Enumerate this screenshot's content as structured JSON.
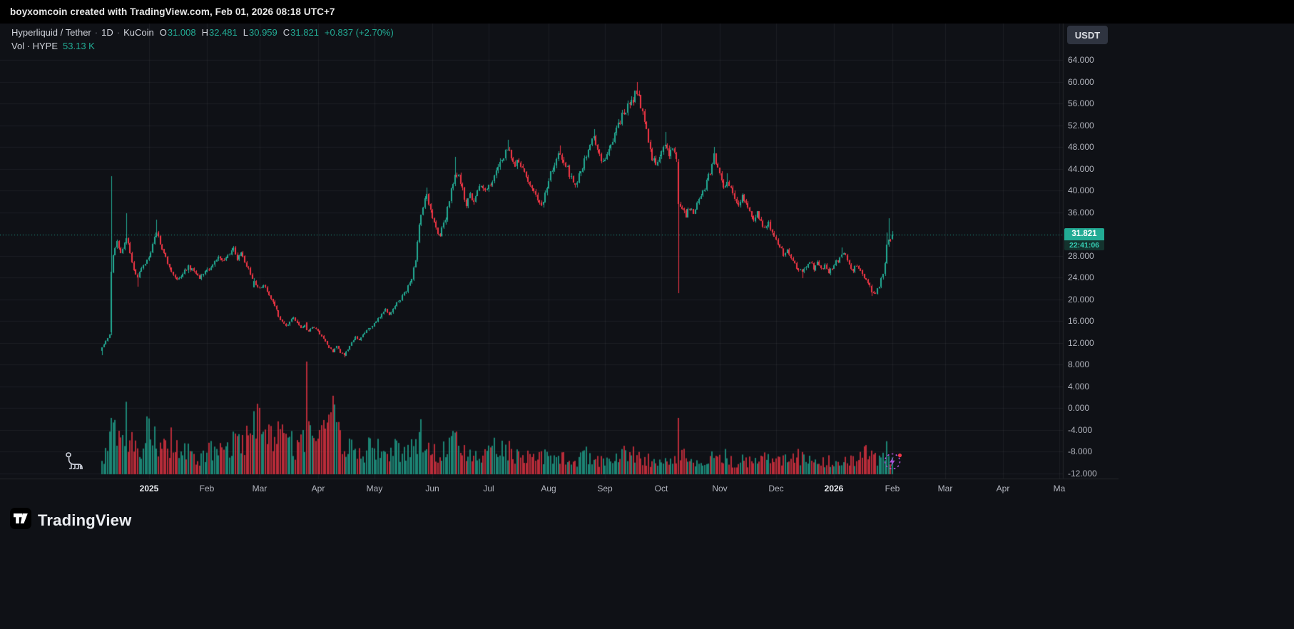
{
  "topbar": {
    "attribution": "boyxomcoin created with TradingView.com, Feb 01, 2026 08:18 UTC+7"
  },
  "legend": {
    "symbol": "Hyperliquid / Tether",
    "separator": "·",
    "interval": "1D",
    "exchange": "KuCoin",
    "ohlc": [
      {
        "label": "O",
        "value": "31.008"
      },
      {
        "label": "H",
        "value": "32.481"
      },
      {
        "label": "L",
        "value": "30.959"
      },
      {
        "label": "C",
        "value": "31.821"
      }
    ],
    "change": "+0.837 (+2.70%)",
    "volume_label": "Vol · HYPE",
    "volume_value": "53.13 K"
  },
  "price_axis": {
    "currency_button": "USDT",
    "ticks": [
      "64.000",
      "60.000",
      "56.000",
      "52.000",
      "48.000",
      "44.000",
      "40.000",
      "36.000",
      "28.000",
      "24.000",
      "20.000",
      "16.000",
      "12.000",
      "8.000",
      "4.000",
      "0.000",
      "-4.000",
      "-8.000",
      "-12.000"
    ],
    "last_price_label": "31.821",
    "countdown": "22:41:06"
  },
  "footer": {
    "brand": "TradingView"
  },
  "colors": {
    "up": "#22ab94",
    "down": "#f23645",
    "grid": "rgba(240,243,250,0.055)",
    "axis_line": "rgba(255,255,255,0.09)",
    "axis_text": "#b2b5be"
  },
  "chart_data": {
    "type": "candlestick_with_volume",
    "title": "Hyperliquid / Tether · 1D · KuCoin",
    "symbol": "HYPE/USDT",
    "timeframe": "1D",
    "current_price": 31.821,
    "last_candle": {
      "open": 31.008,
      "high": 32.481,
      "low": 30.959,
      "close": 31.821,
      "change": 0.837,
      "change_pct": 2.7,
      "volume_label": "53.13 K"
    },
    "price_axis_range": [
      -12,
      64
    ],
    "price_grid_step": 4,
    "days": 421,
    "time_axis_labels": [
      {
        "text": "2025",
        "day": 25,
        "year": true
      },
      {
        "text": "Feb",
        "day": 56
      },
      {
        "text": "Mar",
        "day": 84
      },
      {
        "text": "Apr",
        "day": 115
      },
      {
        "text": "May",
        "day": 145
      },
      {
        "text": "Jun",
        "day": 176
      },
      {
        "text": "Jul",
        "day": 206
      },
      {
        "text": "Aug",
        "day": 238
      },
      {
        "text": "Sep",
        "day": 268
      },
      {
        "text": "Oct",
        "day": 298
      },
      {
        "text": "Nov",
        "day": 329
      },
      {
        "text": "Dec",
        "day": 359
      },
      {
        "text": "2026",
        "day": 390,
        "year": true
      },
      {
        "text": "Feb",
        "day": 421
      },
      {
        "text": "Mar",
        "day": 449
      },
      {
        "text": "Apr",
        "day": 480
      },
      {
        "text": "Ma",
        "day": 510
      }
    ],
    "price_path_anchors": [
      [
        0,
        11.0
      ],
      [
        2,
        12.3
      ],
      [
        4,
        13.4
      ],
      [
        5,
        25.0
      ],
      [
        6,
        28.5
      ],
      [
        8,
        30.5
      ],
      [
        10,
        28.5
      ],
      [
        12,
        30.0
      ],
      [
        13,
        31.5
      ],
      [
        15,
        28.5
      ],
      [
        17,
        25.5
      ],
      [
        19,
        24.0
      ],
      [
        21,
        25.5
      ],
      [
        23,
        26.5
      ],
      [
        25,
        27.5
      ],
      [
        27,
        30.0
      ],
      [
        29,
        32.5
      ],
      [
        31,
        30.5
      ],
      [
        34,
        27.5
      ],
      [
        37,
        25.0
      ],
      [
        40,
        23.4
      ],
      [
        43,
        24.6
      ],
      [
        46,
        26.0
      ],
      [
        49,
        25.0
      ],
      [
        52,
        24.0
      ],
      [
        56,
        25.2
      ],
      [
        59,
        26.5
      ],
      [
        62,
        27.6
      ],
      [
        65,
        26.8
      ],
      [
        68,
        28.6
      ],
      [
        70,
        29.3
      ],
      [
        72,
        27.6
      ],
      [
        74,
        28.6
      ],
      [
        76,
        27.0
      ],
      [
        78,
        25.4
      ],
      [
        80,
        23.8
      ],
      [
        82,
        22.6
      ],
      [
        84,
        21.8
      ],
      [
        86,
        22.8
      ],
      [
        88,
        21.5
      ],
      [
        90,
        20.0
      ],
      [
        92,
        18.5
      ],
      [
        94,
        17.0
      ],
      [
        96,
        15.8
      ],
      [
        98,
        15.0
      ],
      [
        100,
        16.0
      ],
      [
        102,
        16.8
      ],
      [
        104,
        15.5
      ],
      [
        106,
        14.5
      ],
      [
        108,
        15.2
      ],
      [
        110,
        14.0
      ],
      [
        112,
        14.8
      ],
      [
        115,
        14.2
      ],
      [
        117,
        13.2
      ],
      [
        119,
        12.2
      ],
      [
        121,
        11.2
      ],
      [
        123,
        10.4
      ],
      [
        125,
        11.4
      ],
      [
        127,
        10.2
      ],
      [
        129,
        9.8
      ],
      [
        131,
        10.8
      ],
      [
        133,
        12.0
      ],
      [
        135,
        13.2
      ],
      [
        137,
        12.4
      ],
      [
        139,
        13.4
      ],
      [
        141,
        14.2
      ],
      [
        143,
        14.8
      ],
      [
        145,
        15.5
      ],
      [
        147,
        16.3
      ],
      [
        149,
        17.2
      ],
      [
        151,
        18.0
      ],
      [
        153,
        17.2
      ],
      [
        155,
        18.2
      ],
      [
        157,
        19.2
      ],
      [
        159,
        20.0
      ],
      [
        161,
        21.0
      ],
      [
        163,
        22.3
      ],
      [
        165,
        24.0
      ],
      [
        167,
        27.5
      ],
      [
        169,
        33.5
      ],
      [
        171,
        37.0
      ],
      [
        173,
        39.0
      ],
      [
        175,
        36.5
      ],
      [
        176,
        35.0
      ],
      [
        178,
        33.0
      ],
      [
        180,
        31.8
      ],
      [
        182,
        33.8
      ],
      [
        184,
        36.5
      ],
      [
        186,
        40.0
      ],
      [
        188,
        43.5
      ],
      [
        190,
        42.5
      ],
      [
        192,
        40.0
      ],
      [
        194,
        37.5
      ],
      [
        196,
        39.0
      ],
      [
        198,
        38.0
      ],
      [
        200,
        40.0
      ],
      [
        202,
        41.0
      ],
      [
        204,
        40.0
      ],
      [
        206,
        40.5
      ],
      [
        208,
        42.0
      ],
      [
        210,
        43.5
      ],
      [
        212,
        45.0
      ],
      [
        214,
        46.5
      ],
      [
        216,
        47.8
      ],
      [
        218,
        46.0
      ],
      [
        220,
        44.5
      ],
      [
        222,
        45.5
      ],
      [
        224,
        44.0
      ],
      [
        226,
        42.5
      ],
      [
        228,
        41.0
      ],
      [
        230,
        39.5
      ],
      [
        232,
        38.5
      ],
      [
        234,
        37.0
      ],
      [
        236,
        39.5
      ],
      [
        238,
        42.0
      ],
      [
        240,
        44.0
      ],
      [
        242,
        45.8
      ],
      [
        244,
        47.0
      ],
      [
        246,
        45.5
      ],
      [
        248,
        44.0
      ],
      [
        250,
        42.0
      ],
      [
        252,
        40.8
      ],
      [
        254,
        42.5
      ],
      [
        256,
        44.5
      ],
      [
        258,
        46.5
      ],
      [
        260,
        48.5
      ],
      [
        262,
        50.2
      ],
      [
        264,
        47.5
      ],
      [
        266,
        45.5
      ],
      [
        268,
        45.8
      ],
      [
        271,
        48.0
      ],
      [
        274,
        51.0
      ],
      [
        277,
        53.5
      ],
      [
        280,
        55.5
      ],
      [
        283,
        57.0
      ],
      [
        285,
        58.3
      ],
      [
        287,
        55.5
      ],
      [
        289,
        52.5
      ],
      [
        291,
        49.0
      ],
      [
        293,
        46.0
      ],
      [
        295,
        44.8
      ],
      [
        297,
        46.5
      ],
      [
        298,
        47.5
      ],
      [
        300,
        48.7
      ],
      [
        302,
        46.8
      ],
      [
        304,
        48.0
      ],
      [
        306,
        46.0
      ],
      [
        307,
        37.5
      ],
      [
        309,
        37.0
      ],
      [
        311,
        35.5
      ],
      [
        313,
        37.0
      ],
      [
        315,
        36.0
      ],
      [
        317,
        37.5
      ],
      [
        319,
        39.0
      ],
      [
        321,
        40.5
      ],
      [
        323,
        42.5
      ],
      [
        325,
        44.5
      ],
      [
        326,
        46.3
      ],
      [
        328,
        44.5
      ],
      [
        329,
        43.0
      ],
      [
        331,
        40.0
      ],
      [
        333,
        41.8
      ],
      [
        335,
        40.5
      ],
      [
        337,
        38.8
      ],
      [
        339,
        37.5
      ],
      [
        341,
        39.0
      ],
      [
        343,
        37.8
      ],
      [
        345,
        36.2
      ],
      [
        347,
        34.8
      ],
      [
        349,
        35.8
      ],
      [
        351,
        34.2
      ],
      [
        353,
        32.8
      ],
      [
        355,
        33.8
      ],
      [
        357,
        32.2
      ],
      [
        359,
        31.2
      ],
      [
        361,
        29.8
      ],
      [
        363,
        28.3
      ],
      [
        365,
        29.2
      ],
      [
        367,
        27.8
      ],
      [
        369,
        26.4
      ],
      [
        371,
        25.4
      ],
      [
        373,
        24.7
      ],
      [
        375,
        25.9
      ],
      [
        377,
        26.8
      ],
      [
        379,
        25.7
      ],
      [
        381,
        26.6
      ],
      [
        383,
        25.5
      ],
      [
        385,
        26.3
      ],
      [
        387,
        25.1
      ],
      [
        389,
        25.9
      ],
      [
        390,
        26.3
      ],
      [
        392,
        27.2
      ],
      [
        394,
        28.3
      ],
      [
        396,
        27.8
      ],
      [
        398,
        26.4
      ],
      [
        400,
        25.4
      ],
      [
        402,
        26.2
      ],
      [
        404,
        25.1
      ],
      [
        406,
        24.1
      ],
      [
        408,
        22.9
      ],
      [
        410,
        21.5
      ],
      [
        412,
        21.1
      ],
      [
        414,
        22.4
      ],
      [
        416,
        24.8
      ],
      [
        417,
        26.8
      ],
      [
        418,
        29.8
      ],
      [
        419,
        31.0
      ],
      [
        420,
        30.6
      ],
      [
        421,
        31.821
      ]
    ],
    "volume_anchors": [
      [
        0,
        0.1
      ],
      [
        3,
        0.22
      ],
      [
        5,
        0.48
      ],
      [
        7,
        0.42
      ],
      [
        10,
        0.34
      ],
      [
        13,
        0.44
      ],
      [
        16,
        0.3
      ],
      [
        19,
        0.26
      ],
      [
        22,
        0.22
      ],
      [
        25,
        0.44
      ],
      [
        28,
        0.34
      ],
      [
        31,
        0.28
      ],
      [
        34,
        0.24
      ],
      [
        37,
        0.28
      ],
      [
        40,
        0.24
      ],
      [
        44,
        0.2
      ],
      [
        48,
        0.17
      ],
      [
        52,
        0.15
      ],
      [
        56,
        0.22
      ],
      [
        60,
        0.18
      ],
      [
        64,
        0.25
      ],
      [
        68,
        0.22
      ],
      [
        71,
        0.3
      ],
      [
        74,
        0.24
      ],
      [
        77,
        0.34
      ],
      [
        80,
        0.42
      ],
      [
        84,
        0.5
      ],
      [
        86,
        0.34
      ],
      [
        88,
        0.28
      ],
      [
        90,
        0.34
      ],
      [
        92,
        0.28
      ],
      [
        94,
        0.36
      ],
      [
        96,
        0.3
      ],
      [
        98,
        0.24
      ],
      [
        100,
        0.28
      ],
      [
        103,
        0.24
      ],
      [
        106,
        0.3
      ],
      [
        108,
        0.36
      ],
      [
        110,
        0.38
      ],
      [
        112,
        0.3
      ],
      [
        115,
        0.24
      ],
      [
        118,
        0.34
      ],
      [
        120,
        0.46
      ],
      [
        122,
        0.52
      ],
      [
        124,
        0.44
      ],
      [
        126,
        0.36
      ],
      [
        128,
        0.3
      ],
      [
        130,
        0.26
      ],
      [
        133,
        0.22
      ],
      [
        136,
        0.2
      ],
      [
        139,
        0.18
      ],
      [
        142,
        0.22
      ],
      [
        145,
        0.24
      ],
      [
        148,
        0.2
      ],
      [
        152,
        0.18
      ],
      [
        156,
        0.22
      ],
      [
        160,
        0.18
      ],
      [
        164,
        0.2
      ],
      [
        168,
        0.3
      ],
      [
        171,
        0.34
      ],
      [
        174,
        0.26
      ],
      [
        176,
        0.22
      ],
      [
        179,
        0.18
      ],
      [
        182,
        0.22
      ],
      [
        185,
        0.26
      ],
      [
        188,
        0.3
      ],
      [
        191,
        0.22
      ],
      [
        194,
        0.18
      ],
      [
        197,
        0.16
      ],
      [
        200,
        0.2
      ],
      [
        203,
        0.16
      ],
      [
        206,
        0.18
      ],
      [
        209,
        0.22
      ],
      [
        212,
        0.2
      ],
      [
        215,
        0.24
      ],
      [
        218,
        0.18
      ],
      [
        221,
        0.16
      ],
      [
        224,
        0.14
      ],
      [
        227,
        0.16
      ],
      [
        230,
        0.18
      ],
      [
        233,
        0.14
      ],
      [
        236,
        0.16
      ],
      [
        239,
        0.14
      ],
      [
        242,
        0.16
      ],
      [
        245,
        0.13
      ],
      [
        248,
        0.14
      ],
      [
        251,
        0.12
      ],
      [
        254,
        0.14
      ],
      [
        257,
        0.16
      ],
      [
        260,
        0.18
      ],
      [
        263,
        0.14
      ],
      [
        266,
        0.12
      ],
      [
        269,
        0.14
      ],
      [
        272,
        0.18
      ],
      [
        275,
        0.2
      ],
      [
        278,
        0.22
      ],
      [
        281,
        0.18
      ],
      [
        284,
        0.2
      ],
      [
        287,
        0.16
      ],
      [
        290,
        0.14
      ],
      [
        293,
        0.12
      ],
      [
        296,
        0.11
      ],
      [
        299,
        0.13
      ],
      [
        302,
        0.12
      ],
      [
        305,
        0.14
      ],
      [
        308,
        0.24
      ],
      [
        311,
        0.16
      ],
      [
        314,
        0.12
      ],
      [
        317,
        0.14
      ],
      [
        320,
        0.12
      ],
      [
        323,
        0.16
      ],
      [
        326,
        0.14
      ],
      [
        329,
        0.12
      ],
      [
        332,
        0.16
      ],
      [
        335,
        0.12
      ],
      [
        338,
        0.11
      ],
      [
        341,
        0.13
      ],
      [
        344,
        0.11
      ],
      [
        347,
        0.13
      ],
      [
        350,
        0.15
      ],
      [
        353,
        0.17
      ],
      [
        356,
        0.13
      ],
      [
        359,
        0.12
      ],
      [
        362,
        0.14
      ],
      [
        365,
        0.11
      ],
      [
        368,
        0.13
      ],
      [
        371,
        0.16
      ],
      [
        374,
        0.13
      ],
      [
        377,
        0.11
      ],
      [
        380,
        0.12
      ],
      [
        383,
        0.1
      ],
      [
        386,
        0.11
      ],
      [
        389,
        0.13
      ],
      [
        392,
        0.15
      ],
      [
        395,
        0.12
      ],
      [
        398,
        0.11
      ],
      [
        401,
        0.13
      ],
      [
        404,
        0.15
      ],
      [
        407,
        0.18
      ],
      [
        410,
        0.16
      ],
      [
        412,
        0.13
      ],
      [
        414,
        0.14
      ],
      [
        416,
        0.2
      ],
      [
        418,
        0.26
      ],
      [
        420,
        0.16
      ],
      [
        421,
        0.12
      ]
    ],
    "candle_overrides": {
      "0": {
        "o": 10.4,
        "l": 9.8
      },
      "5": {
        "o": 13.8,
        "h": 42.6,
        "l": 13.4,
        "c": 25.0,
        "v": 0.5
      },
      "13": {
        "h": 35.8
      },
      "19": {
        "l": 22.3
      },
      "29": {
        "h": 34.6
      },
      "70": {
        "h": 29.8
      },
      "81": {
        "o": 22.2,
        "c": 23.4,
        "v": 0.56
      },
      "109": {
        "o": 15.8,
        "c": 14.3,
        "v": 1.0
      },
      "122": {
        "v": 0.55
      },
      "129": {
        "l": 9.3
      },
      "173": {
        "h": 40.5
      },
      "188": {
        "h": 46.2
      },
      "216": {
        "h": 49.3
      },
      "244": {
        "h": 48.2
      },
      "262": {
        "h": 51.3
      },
      "285": {
        "h": 59.9
      },
      "300": {
        "h": 50.8
      },
      "307": {
        "o": 45.2,
        "h": 45.8,
        "l": 21.2,
        "c": 37.5,
        "v": 0.5
      },
      "326": {
        "h": 48.0
      },
      "333": {
        "h": 43.2
      },
      "373": {
        "l": 23.8
      },
      "394": {
        "h": 29.5
      },
      "410": {
        "l": 20.6
      },
      "418": {
        "h": 32.2
      },
      "419": {
        "h": 34.9
      },
      "421": {
        "o": 31.008,
        "h": 32.481,
        "l": 30.959,
        "c": 31.821,
        "v": 0.15
      }
    }
  }
}
